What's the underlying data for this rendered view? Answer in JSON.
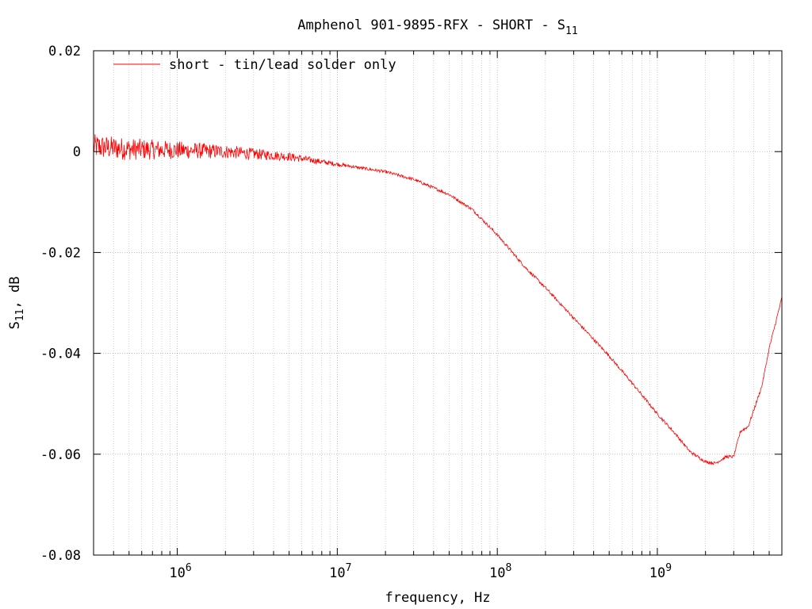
{
  "chart_data": {
    "type": "line",
    "title": "Amphenol 901-9895-RFX - SHORT - S",
    "title_subscript": "11",
    "xlabel": "frequency, Hz",
    "ylabel_main": "S",
    "ylabel_sub": "11",
    "ylabel_suffix": ", dB",
    "x_scale": "log",
    "xlim": [
      300000,
      6000000000
    ],
    "ylim": [
      -0.08,
      0.02
    ],
    "grid": true,
    "legend_position": "top-left",
    "x_ticks": [
      {
        "base": "10",
        "exp": "6",
        "value": 1000000
      },
      {
        "base": "10",
        "exp": "7",
        "value": 10000000
      },
      {
        "base": "10",
        "exp": "8",
        "value": 100000000
      },
      {
        "base": "10",
        "exp": "9",
        "value": 1000000000
      }
    ],
    "y_ticks": [
      {
        "label": "0.02",
        "value": 0.02
      },
      {
        "label": "0",
        "value": 0
      },
      {
        "label": "-0.02",
        "value": -0.02
      },
      {
        "label": "-0.04",
        "value": -0.04
      },
      {
        "label": "-0.06",
        "value": -0.06
      },
      {
        "label": "-0.08",
        "value": -0.08
      }
    ],
    "series": [
      {
        "name": "short - tin/lead solder only",
        "color": "#ff0000",
        "x": [
          300000,
          500000,
          1000000,
          2000000,
          5000000,
          10000000,
          20000000,
          30000000,
          50000000,
          70000000,
          100000000,
          150000000,
          200000000,
          300000000,
          500000000,
          700000000,
          1000000000,
          1300000000,
          1600000000,
          2000000000,
          2300000000,
          2700000000,
          3000000000,
          3300000000,
          3700000000,
          4500000000,
          5000000000,
          6000000000
        ],
        "y": [
          0.001,
          0.0005,
          0.0003,
          0.0,
          -0.001,
          -0.0025,
          -0.004,
          -0.0055,
          -0.0085,
          -0.0115,
          -0.0165,
          -0.023,
          -0.027,
          -0.033,
          -0.0405,
          -0.046,
          -0.052,
          -0.056,
          -0.0595,
          -0.0615,
          -0.0618,
          -0.0605,
          -0.0605,
          -0.0555,
          -0.0545,
          -0.0465,
          -0.039,
          -0.029
        ]
      }
    ]
  }
}
